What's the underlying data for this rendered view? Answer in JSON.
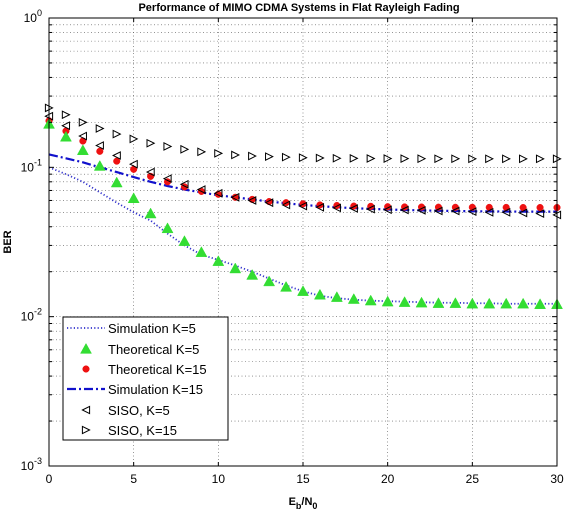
{
  "chart_data": {
    "type": "line",
    "title": "Performance of MIMO CDMA Systems in Flat Rayleigh Fading",
    "xlabel": "E_b/N_0",
    "ylabel": "BER",
    "xlim": [
      0,
      30
    ],
    "ylim": [
      0.001,
      1
    ],
    "yscale": "log",
    "grid": true,
    "legend_position": "bottom-left",
    "x_ticks": [
      "0",
      "5",
      "10",
      "15",
      "20",
      "25",
      "30"
    ],
    "y_ticks": [
      {
        "base": "10",
        "exp": "0",
        "value": 1
      },
      {
        "base": "10",
        "exp": "-1",
        "value": 0.1
      },
      {
        "base": "10",
        "exp": "-2",
        "value": 0.01
      },
      {
        "base": "10",
        "exp": "-3",
        "value": 0.001
      }
    ],
    "series": [
      {
        "name": "Simulation K=5",
        "style": "dotted",
        "color": "#3333cc",
        "x": [
          0,
          1,
          2,
          3,
          4,
          5,
          6,
          7,
          8,
          9,
          10,
          11,
          12,
          13,
          14,
          15,
          16,
          17,
          18,
          19,
          20,
          21,
          22,
          23,
          24,
          25,
          26,
          27,
          28,
          29,
          30
        ],
        "y": [
          0.1,
          0.09,
          0.08,
          0.068,
          0.058,
          0.05,
          0.044,
          0.036,
          0.03,
          0.026,
          0.024,
          0.022,
          0.02,
          0.018,
          0.0162,
          0.0148,
          0.0138,
          0.0133,
          0.013,
          0.0128,
          0.0127,
          0.0126,
          0.0125,
          0.0124,
          0.0124,
          0.0123,
          0.0123,
          0.0122,
          0.0122,
          0.0122,
          0.0122
        ]
      },
      {
        "name": "Theoretical K=5",
        "style": "marker",
        "marker": "triangle-up",
        "color": "#33dd33",
        "x": [
          0,
          1,
          2,
          3,
          4,
          5,
          6,
          7,
          8,
          9,
          10,
          11,
          12,
          13,
          14,
          15,
          16,
          17,
          18,
          19,
          20,
          21,
          22,
          23,
          24,
          25,
          26,
          27,
          28,
          29,
          30
        ],
        "y": [
          0.195,
          0.16,
          0.13,
          0.102,
          0.079,
          0.062,
          0.049,
          0.039,
          0.032,
          0.027,
          0.0235,
          0.021,
          0.019,
          0.0172,
          0.0158,
          0.0148,
          0.014,
          0.0135,
          0.0131,
          0.0128,
          0.0126,
          0.0125,
          0.0124,
          0.0123,
          0.0123,
          0.0122,
          0.0122,
          0.0122,
          0.0122,
          0.0121,
          0.0121
        ]
      },
      {
        "name": "Theoretical K=15",
        "style": "marker",
        "marker": "circle",
        "color": "#ee1111",
        "x": [
          0,
          1,
          2,
          3,
          4,
          5,
          6,
          7,
          8,
          9,
          10,
          11,
          12,
          13,
          14,
          15,
          16,
          17,
          18,
          19,
          20,
          21,
          22,
          23,
          24,
          25,
          26,
          27,
          28,
          29,
          30
        ],
        "y": [
          0.205,
          0.175,
          0.15,
          0.128,
          0.11,
          0.097,
          0.087,
          0.08,
          0.074,
          0.069,
          0.066,
          0.063,
          0.061,
          0.059,
          0.058,
          0.057,
          0.056,
          0.0555,
          0.055,
          0.0548,
          0.0545,
          0.0543,
          0.0542,
          0.0541,
          0.054,
          0.054,
          0.0539,
          0.0539,
          0.0538,
          0.0538,
          0.0538
        ]
      },
      {
        "name": "Simulation K=15",
        "style": "dashdot",
        "color": "#1111cc",
        "x": [
          0,
          1,
          2,
          3,
          4,
          5,
          6,
          7,
          8,
          9,
          10,
          11,
          12,
          13,
          14,
          15,
          16,
          17,
          18,
          19,
          20,
          21,
          22,
          23,
          24,
          25,
          26,
          27,
          28,
          29,
          30
        ],
        "y": [
          0.122,
          0.115,
          0.108,
          0.1,
          0.093,
          0.086,
          0.08,
          0.075,
          0.071,
          0.068,
          0.065,
          0.063,
          0.061,
          0.059,
          0.0575,
          0.056,
          0.055,
          0.054,
          0.0533,
          0.0527,
          0.0522,
          0.0518,
          0.0515,
          0.0512,
          0.051,
          0.0508,
          0.0507,
          0.0506,
          0.0505,
          0.0505,
          0.0505
        ]
      },
      {
        "name": "SISO, K=5",
        "style": "marker",
        "marker": "triangle-left",
        "color": "#000000",
        "x": [
          0,
          1,
          2,
          3,
          4,
          5,
          6,
          7,
          8,
          9,
          10,
          11,
          12,
          13,
          14,
          15,
          16,
          17,
          18,
          19,
          20,
          21,
          22,
          23,
          24,
          25,
          26,
          27,
          28,
          29,
          30
        ],
        "y": [
          0.22,
          0.19,
          0.162,
          0.14,
          0.12,
          0.105,
          0.093,
          0.084,
          0.077,
          0.071,
          0.067,
          0.063,
          0.06,
          0.058,
          0.056,
          0.055,
          0.054,
          0.0535,
          0.053,
          0.0525,
          0.052,
          0.0518,
          0.0515,
          0.051,
          0.051,
          0.0505,
          0.05,
          0.05,
          0.0495,
          0.049,
          0.048
        ]
      },
      {
        "name": "SISO, K=15",
        "style": "marker",
        "marker": "triangle-right",
        "color": "#000000",
        "x": [
          0,
          1,
          2,
          3,
          4,
          5,
          6,
          7,
          8,
          9,
          10,
          11,
          12,
          13,
          14,
          15,
          16,
          17,
          18,
          19,
          20,
          21,
          22,
          23,
          24,
          25,
          26,
          27,
          28,
          29,
          30
        ],
        "y": [
          0.25,
          0.225,
          0.2,
          0.182,
          0.167,
          0.155,
          0.145,
          0.138,
          0.132,
          0.127,
          0.124,
          0.121,
          0.119,
          0.118,
          0.117,
          0.116,
          0.1155,
          0.115,
          0.1148,
          0.1146,
          0.1145,
          0.1144,
          0.1143,
          0.1142,
          0.1142,
          0.1141,
          0.1141,
          0.114,
          0.114,
          0.114,
          0.114
        ]
      }
    ]
  }
}
